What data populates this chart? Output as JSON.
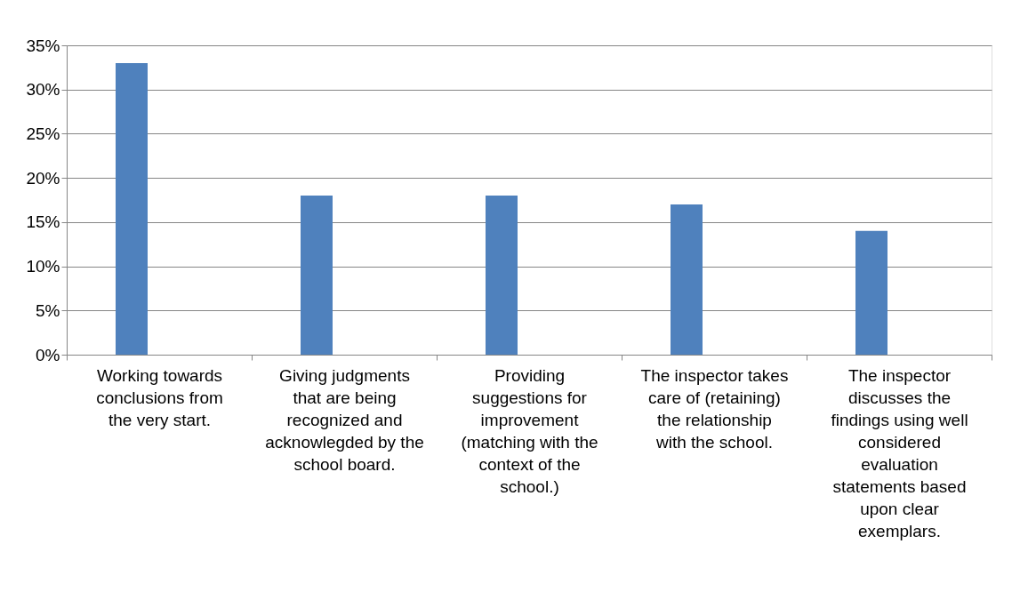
{
  "chart_data": {
    "type": "bar",
    "categories": [
      "Working towards conclusions from the very start.",
      "Giving judgments that are being recognized and acknowlegded by the school board.",
      "Providing suggestions for improvement (matching with the context of the school.)",
      "The inspector takes care of (retaining) the relationship with the school.",
      "The inspector discusses the findings using well considered evaluation statements based upon clear exemplars."
    ],
    "values": [
      33,
      18,
      18,
      17,
      14
    ],
    "color": "#4f81bd",
    "ylim": [
      0,
      35
    ],
    "yticks": [
      {
        "value": 0,
        "label": "0%"
      },
      {
        "value": 5,
        "label": "5%"
      },
      {
        "value": 10,
        "label": "10%"
      },
      {
        "value": 15,
        "label": "15%"
      },
      {
        "value": 20,
        "label": "20%"
      },
      {
        "value": 25,
        "label": "25%"
      },
      {
        "value": 30,
        "label": "30%"
      },
      {
        "value": 35,
        "label": "35%"
      }
    ],
    "grid": "y",
    "legend": false
  }
}
